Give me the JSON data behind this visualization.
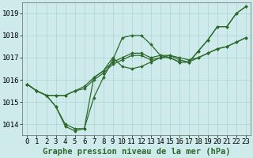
{
  "title": "Graphe pression niveau de la mer (hPa)",
  "background_color": "#ceeaea",
  "grid_color": "#a8d5d5",
  "line_color": "#2d6a2d",
  "x_hours": [
    0,
    1,
    2,
    3,
    4,
    5,
    6,
    7,
    8,
    9,
    10,
    11,
    12,
    13,
    14,
    15,
    16,
    17,
    18,
    19,
    20,
    21,
    22,
    23
  ],
  "series": [
    [
      1015.8,
      1015.5,
      1015.3,
      1014.8,
      1013.9,
      1013.7,
      1013.8,
      1016.1,
      1016.4,
      1017.0,
      1016.6,
      1016.5,
      1016.6,
      1016.8,
      1017.0,
      1017.0,
      1016.8,
      1016.8,
      1017.3,
      1017.8,
      1018.4,
      1018.4,
      1019.0,
      1019.3
    ],
    [
      1015.8,
      1015.5,
      1015.3,
      1015.3,
      1015.3,
      1015.5,
      1015.6,
      1016.0,
      1016.3,
      1016.7,
      1016.9,
      1017.1,
      1017.1,
      1016.9,
      1017.0,
      1017.1,
      1017.0,
      1016.9,
      1017.0,
      1017.2,
      1017.4,
      1017.5,
      1017.7,
      1017.9
    ],
    [
      1015.8,
      1015.5,
      1015.3,
      1015.3,
      1015.3,
      1015.5,
      1015.7,
      1016.1,
      1016.4,
      1016.8,
      1017.0,
      1017.2,
      1017.2,
      1017.0,
      1017.1,
      1017.1,
      1016.9,
      1016.8,
      1017.0,
      1017.2,
      1017.4,
      1017.5,
      1017.7,
      1017.9
    ],
    [
      1015.8,
      1015.5,
      1015.3,
      1014.8,
      1014.0,
      1013.8,
      1013.8,
      1015.2,
      1016.1,
      1016.9,
      1017.9,
      1018.0,
      1018.0,
      1017.6,
      1017.1,
      1017.0,
      1016.8,
      1016.8,
      1017.3,
      1017.8,
      1018.4,
      1018.4,
      1019.0,
      1019.3
    ]
  ],
  "ylim": [
    1013.5,
    1019.5
  ],
  "yticks": [
    1014,
    1015,
    1016,
    1017,
    1018,
    1019
  ],
  "xlim": [
    -0.5,
    23.5
  ],
  "xticks": [
    0,
    1,
    2,
    3,
    4,
    5,
    6,
    7,
    8,
    9,
    10,
    11,
    12,
    13,
    14,
    15,
    16,
    17,
    18,
    19,
    20,
    21,
    22,
    23
  ],
  "tick_fontsize": 6.5,
  "title_fontsize": 7.5,
  "marker": "D",
  "marker_size": 1.8,
  "linewidth": 0.9
}
